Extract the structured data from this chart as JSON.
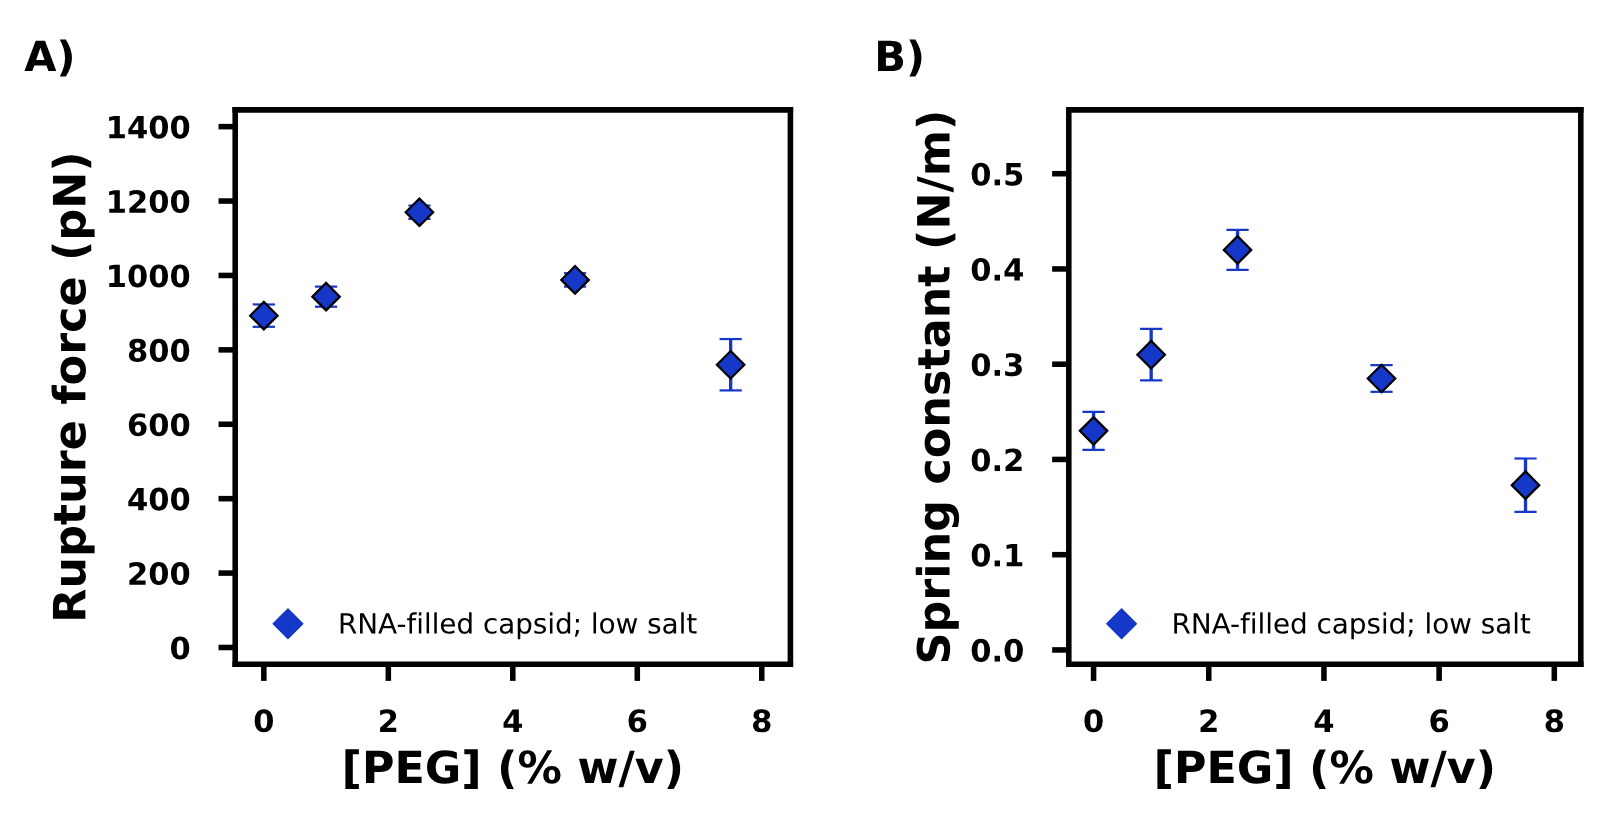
{
  "chart_data": [
    {
      "type": "scatter",
      "title": "A)",
      "xlabel": "[PEG] (% w/v)",
      "ylabel": "Rupture force (pN)",
      "xlim": [
        -0.46,
        8.46
      ],
      "ylim": [
        -45,
        1445
      ],
      "xticks": [
        0,
        2,
        4,
        6,
        8
      ],
      "yticks": [
        0,
        200,
        400,
        600,
        800,
        1000,
        1200,
        1400
      ],
      "marker": "diamond",
      "legend": "bottom left",
      "grid": false,
      "series": [
        {
          "name": "RNA-filled capsid; low salt",
          "color": "#1538c8",
          "x": [
            0,
            1,
            2.5,
            5,
            7.5
          ],
          "values": [
            892,
            943,
            1170,
            988,
            760
          ],
          "errors": [
            30,
            27,
            18,
            18,
            69
          ]
        }
      ]
    },
    {
      "type": "scatter",
      "title": "B)",
      "xlabel": "[PEG] (% w/v)",
      "ylabel": "Spring constant (N/m)",
      "xlim": [
        -0.43,
        8.46
      ],
      "ylim": [
        -0.015,
        0.567
      ],
      "xticks": [
        0,
        2,
        4,
        6,
        8
      ],
      "yticks": [
        {
          "value": 0,
          "label": "0.0"
        },
        0.1,
        0.2,
        0.3,
        0.4,
        0.5
      ],
      "marker": "diamond",
      "legend": "bottom left",
      "grid": false,
      "series": [
        {
          "name": "RNA-filled capsid; low salt",
          "color": "#1538c8",
          "x": [
            0,
            1,
            2.5,
            5,
            7.5
          ],
          "values": [
            0.23,
            0.31,
            0.42,
            0.285,
            0.173
          ],
          "errors": [
            0.02,
            0.027,
            0.021,
            0.014,
            0.028
          ]
        }
      ]
    }
  ]
}
